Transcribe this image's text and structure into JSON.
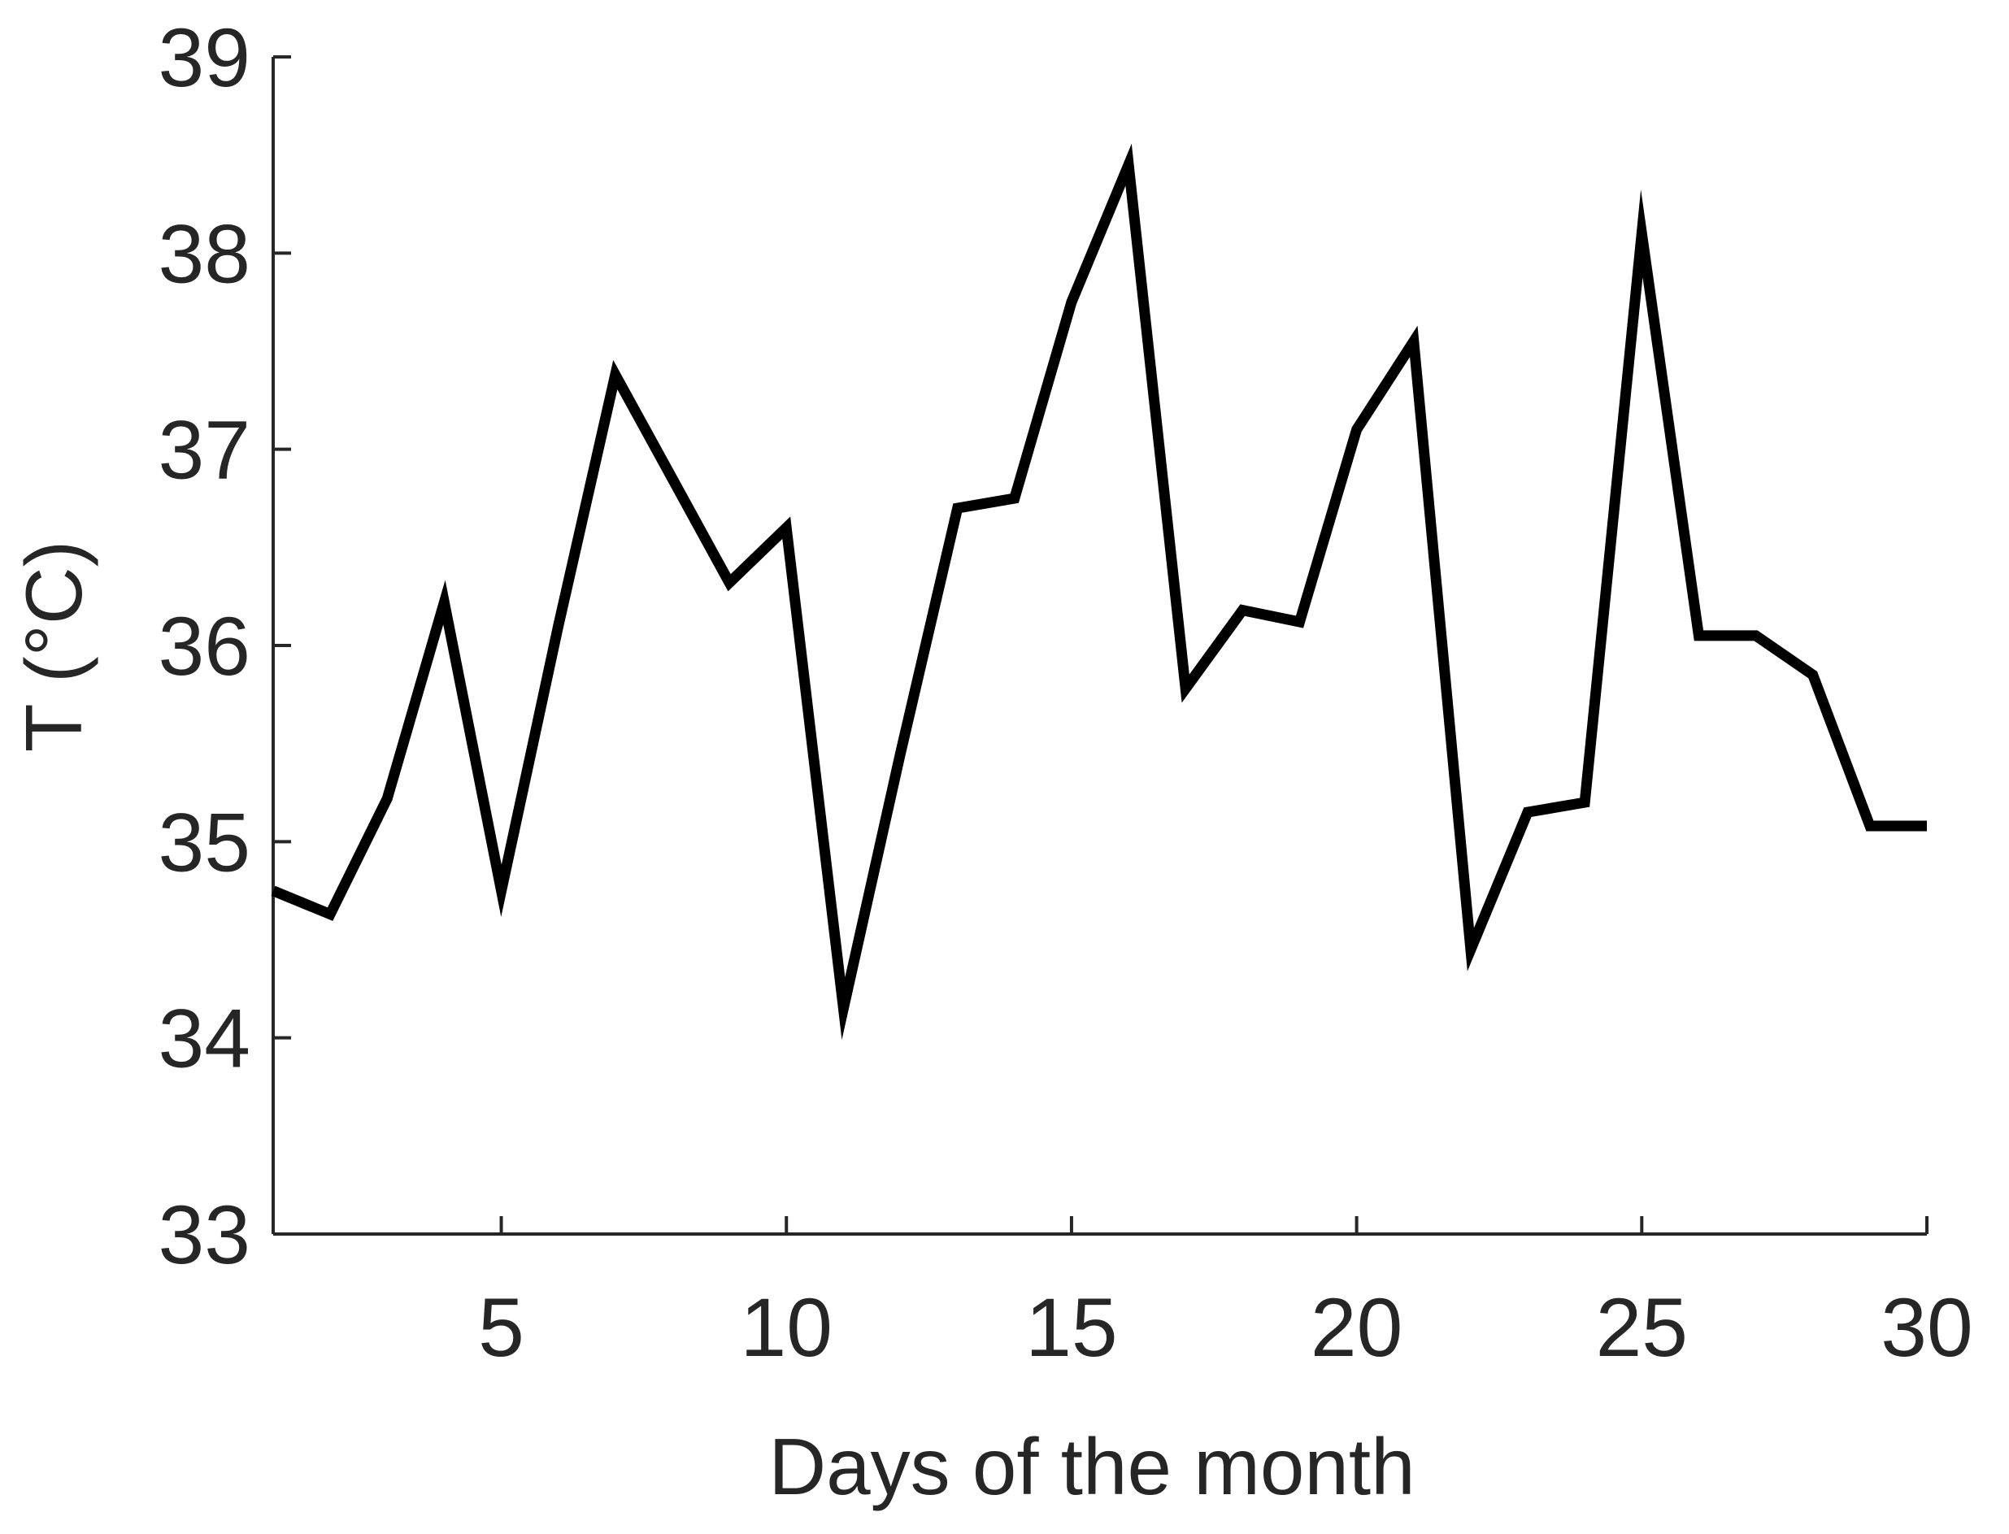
{
  "chart_data": {
    "type": "line",
    "title": "",
    "xlabel": "Days of the month",
    "ylabel": "T (°C)",
    "xlim": [
      1,
      30
    ],
    "ylim": [
      33,
      39
    ],
    "xticks": [
      5,
      10,
      15,
      20,
      25,
      30
    ],
    "yticks": [
      33,
      34,
      35,
      36,
      37,
      38,
      39
    ],
    "grid": false,
    "legend": "none",
    "series": [
      {
        "color": "#000000",
        "x": [
          1,
          2,
          3,
          4,
          5,
          6,
          7,
          8,
          9,
          10,
          11,
          12,
          13,
          14,
          15,
          16,
          17,
          18,
          19,
          20,
          21,
          22,
          23,
          24,
          25,
          26,
          27,
          28,
          29,
          30
        ],
        "y": [
          34.75,
          34.63,
          35.22,
          36.22,
          34.75,
          36.1,
          37.38,
          36.85,
          36.32,
          36.6,
          34.15,
          35.45,
          36.7,
          36.75,
          37.75,
          38.45,
          35.78,
          36.18,
          36.12,
          37.1,
          37.55,
          34.45,
          35.15,
          35.2,
          38.1,
          36.05,
          36.05,
          35.85,
          35.08,
          35.08
        ]
      }
    ]
  }
}
